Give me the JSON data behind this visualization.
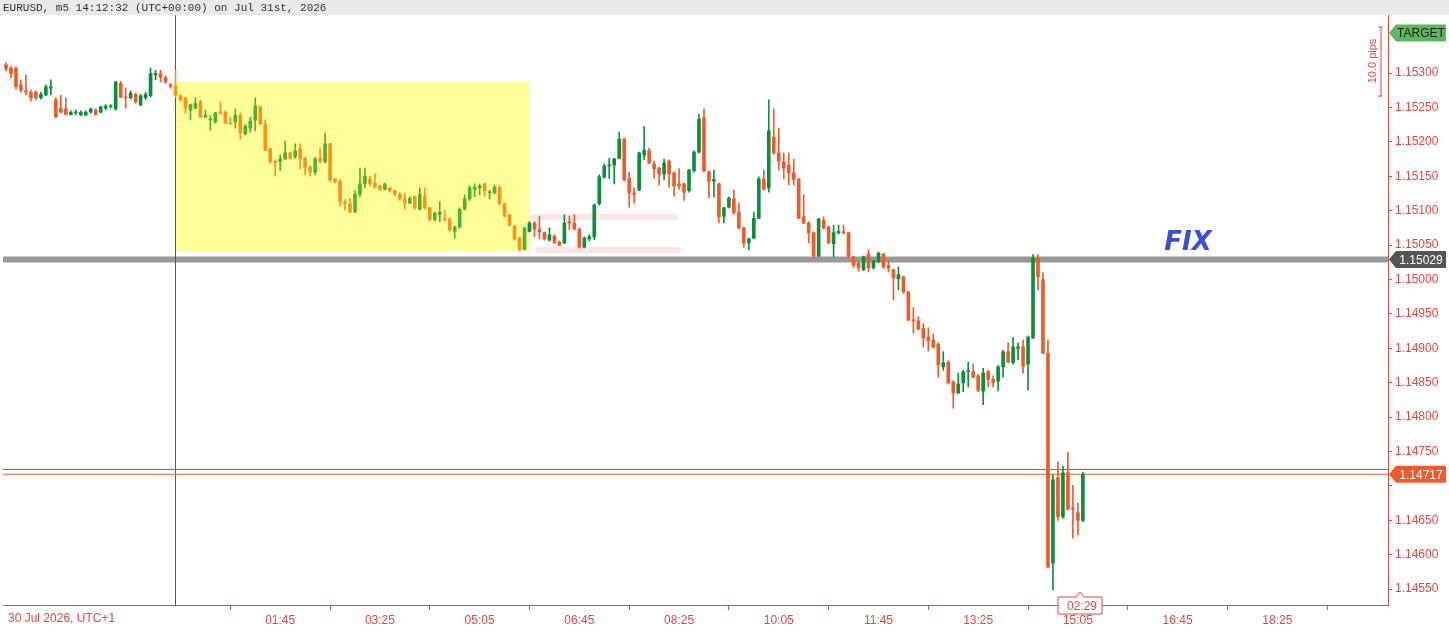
{
  "chart_data": {
    "type": "candlestick",
    "title": "EURUSD, m5 14:12:32 (UTC+00:00) on Jul 31st, 2026",
    "x": [
      "2026-07-30T21:10",
      "2026-07-30T21:15",
      "2026-07-30T21:20",
      "2026-07-30T21:25",
      "2026-07-30T21:30",
      "2026-07-30T21:35",
      "2026-07-30T21:40",
      "2026-07-30T21:45",
      "2026-07-30T21:50",
      "2026-07-30T21:55",
      "2026-07-30T22:00",
      "2026-07-30T22:05",
      "2026-07-30T22:10",
      "2026-07-30T22:15",
      "2026-07-30T22:20",
      "2026-07-30T22:25",
      "2026-07-30T22:30",
      "2026-07-30T22:35",
      "2026-07-30T22:40",
      "2026-07-30T22:45",
      "2026-07-30T22:50",
      "2026-07-30T22:55",
      "2026-07-30T23:00",
      "2026-07-30T23:05",
      "2026-07-30T23:10",
      "2026-07-30T23:15",
      "2026-07-30T23:20",
      "2026-07-30T23:25",
      "2026-07-30T23:30",
      "2026-07-30T23:35",
      "2026-07-30T23:40",
      "2026-07-30T23:45",
      "2026-07-30T23:50",
      "2026-07-30T23:55",
      "2026-07-31T00:00",
      "2026-07-31T00:05",
      "2026-07-31T00:10",
      "2026-07-31T00:15",
      "2026-07-31T00:20",
      "2026-07-31T00:25",
      "2026-07-31T00:30",
      "2026-07-31T00:35",
      "2026-07-31T00:40",
      "2026-07-31T00:45",
      "2026-07-31T00:50",
      "2026-07-31T00:55",
      "2026-07-31T01:00",
      "2026-07-31T01:05",
      "2026-07-31T01:10",
      "2026-07-31T01:15",
      "2026-07-31T01:20",
      "2026-07-31T01:25",
      "2026-07-31T01:30",
      "2026-07-31T01:35",
      "2026-07-31T01:40",
      "2026-07-31T01:45",
      "2026-07-31T01:50",
      "2026-07-31T01:55",
      "2026-07-31T02:00",
      "2026-07-31T02:05",
      "2026-07-31T02:10",
      "2026-07-31T02:15",
      "2026-07-31T02:20",
      "2026-07-31T02:25",
      "2026-07-31T02:30",
      "2026-07-31T02:35",
      "2026-07-31T02:40",
      "2026-07-31T02:45",
      "2026-07-31T02:50",
      "2026-07-31T02:55",
      "2026-07-31T03:00",
      "2026-07-31T03:05",
      "2026-07-31T03:10",
      "2026-07-31T03:15",
      "2026-07-31T03:20",
      "2026-07-31T03:25",
      "2026-07-31T03:30",
      "2026-07-31T03:35",
      "2026-07-31T03:40",
      "2026-07-31T03:45",
      "2026-07-31T03:50",
      "2026-07-31T03:55",
      "2026-07-31T04:00",
      "2026-07-31T04:05",
      "2026-07-31T04:10",
      "2026-07-31T04:15",
      "2026-07-31T04:20",
      "2026-07-31T04:25",
      "2026-07-31T04:30",
      "2026-07-31T04:35",
      "2026-07-31T04:40",
      "2026-07-31T04:45",
      "2026-07-31T04:50",
      "2026-07-31T04:55",
      "2026-07-31T05:00",
      "2026-07-31T05:05",
      "2026-07-31T05:10",
      "2026-07-31T05:15",
      "2026-07-31T05:20",
      "2026-07-31T05:25",
      "2026-07-31T05:30",
      "2026-07-31T05:35",
      "2026-07-31T05:40",
      "2026-07-31T05:45",
      "2026-07-31T05:50",
      "2026-07-31T05:55",
      "2026-07-31T06:00",
      "2026-07-31T06:05",
      "2026-07-31T06:10",
      "2026-07-31T06:15",
      "2026-07-31T06:20",
      "2026-07-31T06:25",
      "2026-07-31T06:30",
      "2026-07-31T06:35",
      "2026-07-31T06:40",
      "2026-07-31T06:45",
      "2026-07-31T06:50",
      "2026-07-31T06:55",
      "2026-07-31T07:00",
      "2026-07-31T07:05",
      "2026-07-31T07:10",
      "2026-07-31T07:15",
      "2026-07-31T07:20",
      "2026-07-31T07:25",
      "2026-07-31T07:30",
      "2026-07-31T07:35",
      "2026-07-31T07:40",
      "2026-07-31T07:45",
      "2026-07-31T07:50",
      "2026-07-31T07:55",
      "2026-07-31T08:00",
      "2026-07-31T08:05",
      "2026-07-31T08:10",
      "2026-07-31T08:15",
      "2026-07-31T08:20",
      "2026-07-31T08:25",
      "2026-07-31T08:30",
      "2026-07-31T08:35",
      "2026-07-31T08:40",
      "2026-07-31T08:45",
      "2026-07-31T08:50",
      "2026-07-31T08:55",
      "2026-07-31T09:00",
      "2026-07-31T09:05",
      "2026-07-31T09:10",
      "2026-07-31T09:15",
      "2026-07-31T09:20",
      "2026-07-31T09:25",
      "2026-07-31T09:30",
      "2026-07-31T09:35",
      "2026-07-31T09:40",
      "2026-07-31T09:45",
      "2026-07-31T09:50",
      "2026-07-31T09:55",
      "2026-07-31T10:00",
      "2026-07-31T10:05",
      "2026-07-31T10:10",
      "2026-07-31T10:15",
      "2026-07-31T10:20",
      "2026-07-31T10:25",
      "2026-07-31T10:30",
      "2026-07-31T10:35",
      "2026-07-31T10:40",
      "2026-07-31T10:45",
      "2026-07-31T10:50",
      "2026-07-31T10:55",
      "2026-07-31T11:00",
      "2026-07-31T11:05",
      "2026-07-31T11:10",
      "2026-07-31T11:15",
      "2026-07-31T11:20",
      "2026-07-31T11:25",
      "2026-07-31T11:30",
      "2026-07-31T11:35",
      "2026-07-31T11:40",
      "2026-07-31T11:45",
      "2026-07-31T11:50",
      "2026-07-31T11:55",
      "2026-07-31T12:00",
      "2026-07-31T12:05",
      "2026-07-31T12:10",
      "2026-07-31T12:15",
      "2026-07-31T12:20",
      "2026-07-31T12:25",
      "2026-07-31T12:30",
      "2026-07-31T12:35",
      "2026-07-31T12:40",
      "2026-07-31T12:45",
      "2026-07-31T12:50",
      "2026-07-31T12:55",
      "2026-07-31T13:00",
      "2026-07-31T13:05",
      "2026-07-31T13:10",
      "2026-07-31T13:15",
      "2026-07-31T13:20",
      "2026-07-31T13:25",
      "2026-07-31T13:30",
      "2026-07-31T13:35",
      "2026-07-31T13:40",
      "2026-07-31T13:45",
      "2026-07-31T13:50",
      "2026-07-31T13:55",
      "2026-07-31T14:00",
      "2026-07-31T14:05",
      "2026-07-31T14:10",
      "2026-07-31T14:15",
      "2026-07-31T14:20",
      "2026-07-31T14:25",
      "2026-07-31T14:30",
      "2026-07-31T14:35",
      "2026-07-31T14:40",
      "2026-07-31T14:45",
      "2026-07-31T14:50",
      "2026-07-31T14:55",
      "2026-07-31T15:00",
      "2026-07-31T15:05",
      "2026-07-31T15:10"
    ],
    "ohlc": [
      [
        1.15312,
        1.15315,
        1.15303,
        1.15306
      ],
      [
        1.15307,
        1.1531,
        1.15293,
        1.15299
      ],
      [
        1.15307,
        1.15309,
        1.15277,
        1.1528
      ],
      [
        1.15283,
        1.1529,
        1.15272,
        1.15275
      ],
      [
        1.15274,
        1.15297,
        1.15268,
        1.15272
      ],
      [
        1.15272,
        1.15275,
        1.15259,
        1.15264
      ],
      [
        1.15272,
        1.15274,
        1.15261,
        1.15264
      ],
      [
        1.15264,
        1.15272,
        1.15262,
        1.15269
      ],
      [
        1.15268,
        1.15283,
        1.15267,
        1.1528
      ],
      [
        1.15278,
        1.1529,
        1.15268,
        1.1528
      ],
      [
        1.15261,
        1.15264,
        1.15235,
        1.15236
      ],
      [
        1.15249,
        1.15268,
        1.15242,
        1.15243
      ],
      [
        1.15248,
        1.15264,
        1.15239,
        1.1524
      ],
      [
        1.1524,
        1.15245,
        1.15239,
        1.15243
      ],
      [
        1.15242,
        1.15246,
        1.15239,
        1.15243
      ],
      [
        1.15239,
        1.15245,
        1.15238,
        1.15243
      ],
      [
        1.15239,
        1.15245,
        1.15238,
        1.15243
      ],
      [
        1.15243,
        1.15249,
        1.15242,
        1.15248
      ],
      [
        1.15246,
        1.15248,
        1.15239,
        1.1524
      ],
      [
        1.15243,
        1.15252,
        1.15242,
        1.15251
      ],
      [
        1.15249,
        1.15254,
        1.15246,
        1.15252
      ],
      [
        1.15251,
        1.15254,
        1.15249,
        1.15252
      ],
      [
        1.15248,
        1.15288,
        1.15246,
        1.15287
      ],
      [
        1.15285,
        1.15288,
        1.15264,
        1.15265
      ],
      [
        1.15265,
        1.15278,
        1.15249,
        1.15264
      ],
      [
        1.15264,
        1.15274,
        1.15262,
        1.15271
      ],
      [
        1.15269,
        1.15271,
        1.15256,
        1.15258
      ],
      [
        1.15254,
        1.15269,
        1.15252,
        1.15267
      ],
      [
        1.15264,
        1.15272,
        1.15261,
        1.15269
      ],
      [
        1.15267,
        1.15307,
        1.15265,
        1.15299
      ],
      [
        1.15297,
        1.15304,
        1.1529,
        1.15299
      ],
      [
        1.15299,
        1.15304,
        1.15287,
        1.15294
      ],
      [
        1.15293,
        1.15296,
        1.15285,
        1.15287
      ],
      [
        1.15283,
        1.15285,
        1.15278,
        1.15281
      ],
      [
        1.15281,
        1.15304,
        1.15264,
        1.15267
      ],
      [
        1.15267,
        1.15269,
        1.15259,
        1.15261
      ],
      [
        1.15264,
        1.15265,
        1.15242,
        1.15249
      ],
      [
        1.15246,
        1.15255,
        1.15232,
        1.15254
      ],
      [
        1.15249,
        1.15264,
        1.15248,
        1.15256
      ],
      [
        1.15258,
        1.15261,
        1.15235,
        1.15236
      ],
      [
        1.15236,
        1.15246,
        1.15235,
        1.15239
      ],
      [
        1.15232,
        1.15238,
        1.15217,
        1.15233
      ],
      [
        1.15229,
        1.15243,
        1.15227,
        1.15242
      ],
      [
        1.15243,
        1.15258,
        1.1524,
        1.15242
      ],
      [
        1.15243,
        1.15245,
        1.15226,
        1.15227
      ],
      [
        1.15227,
        1.15236,
        1.15225,
        1.15226
      ],
      [
        1.15229,
        1.15248,
        1.1522,
        1.15239
      ],
      [
        1.15238,
        1.15242,
        1.15204,
        1.15213
      ],
      [
        1.15211,
        1.15225,
        1.1521,
        1.15223
      ],
      [
        1.1522,
        1.15236,
        1.15214,
        1.1523
      ],
      [
        1.15232,
        1.15264,
        1.15216,
        1.15252
      ],
      [
        1.15251,
        1.15252,
        1.15225,
        1.15226
      ],
      [
        1.15226,
        1.15232,
        1.15187,
        1.15188
      ],
      [
        1.1519,
        1.15191,
        1.15169,
        1.15171
      ],
      [
        1.15172,
        1.15174,
        1.1515,
        1.1517
      ],
      [
        1.15171,
        1.15181,
        1.15158,
        1.15175
      ],
      [
        1.15175,
        1.15201,
        1.15174,
        1.15184
      ],
      [
        1.15184,
        1.15185,
        1.15175,
        1.15176
      ],
      [
        1.15178,
        1.15197,
        1.15176,
        1.15187
      ],
      [
        1.1519,
        1.15197,
        1.15161,
        1.15176
      ],
      [
        1.15176,
        1.15178,
        1.15152,
        1.15163
      ],
      [
        1.15163,
        1.15165,
        1.1515,
        1.15156
      ],
      [
        1.15156,
        1.15178,
        1.15152,
        1.15175
      ],
      [
        1.15176,
        1.15191,
        1.15169,
        1.15171
      ],
      [
        1.15171,
        1.15213,
        1.15169,
        1.15197
      ],
      [
        1.15197,
        1.15198,
        1.15142,
        1.15145
      ],
      [
        1.15146,
        1.15147,
        1.1514,
        1.15142
      ],
      [
        1.15143,
        1.15145,
        1.15107,
        1.15113
      ],
      [
        1.15113,
        1.15116,
        1.15101,
        1.1511
      ],
      [
        1.1511,
        1.15118,
        1.15097,
        1.15098
      ],
      [
        1.15098,
        1.15129,
        1.15097,
        1.15124
      ],
      [
        1.15124,
        1.15162,
        1.1512,
        1.15139
      ],
      [
        1.15139,
        1.15162,
        1.15133,
        1.1515
      ],
      [
        1.15146,
        1.1515,
        1.15136,
        1.15139
      ],
      [
        1.1514,
        1.15153,
        1.15133,
        1.15134
      ],
      [
        1.15136,
        1.15137,
        1.15129,
        1.15131
      ],
      [
        1.15131,
        1.1514,
        1.1513,
        1.15139
      ],
      [
        1.15133,
        1.15134,
        1.15127,
        1.15129
      ],
      [
        1.15129,
        1.1513,
        1.15121,
        1.15124
      ],
      [
        1.15124,
        1.15126,
        1.15115,
        1.15117
      ],
      [
        1.15117,
        1.15126,
        1.15102,
        1.15111
      ],
      [
        1.15111,
        1.1512,
        1.1511,
        1.15118
      ],
      [
        1.1512,
        1.15121,
        1.15102,
        1.15104
      ],
      [
        1.15102,
        1.15133,
        1.15101,
        1.15124
      ],
      [
        1.15121,
        1.15133,
        1.15102,
        1.15104
      ],
      [
        1.15104,
        1.15105,
        1.15085,
        1.15087
      ],
      [
        1.15087,
        1.15098,
        1.15085,
        1.15097
      ],
      [
        1.15094,
        1.15113,
        1.15084,
        1.15098
      ],
      [
        1.15088,
        1.15101,
        1.15085,
        1.15087
      ],
      [
        1.15088,
        1.15089,
        1.1507,
        1.15072
      ],
      [
        1.1507,
        1.15078,
        1.1506,
        1.15076
      ],
      [
        1.15076,
        1.15104,
        1.15075,
        1.15102
      ],
      [
        1.15102,
        1.15123,
        1.15101,
        1.15117
      ],
      [
        1.15117,
        1.15136,
        1.15115,
        1.15133
      ],
      [
        1.15131,
        1.15139,
        1.1512,
        1.15134
      ],
      [
        1.15133,
        1.15139,
        1.15123,
        1.15136
      ],
      [
        1.15139,
        1.1514,
        1.15121,
        1.15129
      ],
      [
        1.15126,
        1.1513,
        1.15117,
        1.15127
      ],
      [
        1.15126,
        1.15137,
        1.15124,
        1.15134
      ],
      [
        1.15134,
        1.15136,
        1.15108,
        1.1511
      ],
      [
        1.1511,
        1.15111,
        1.15091,
        1.15092
      ],
      [
        1.15094,
        1.15095,
        1.15078,
        1.15079
      ],
      [
        1.15078,
        1.15079,
        1.15057,
        1.15059
      ],
      [
        1.1506,
        1.15062,
        1.15041,
        1.15043
      ],
      [
        1.15044,
        1.15076,
        1.15043,
        1.15075
      ],
      [
        1.1507,
        1.15084,
        1.15069,
        1.15082
      ],
      [
        1.15082,
        1.15084,
        1.15062,
        1.15073
      ],
      [
        1.15073,
        1.15092,
        1.15059,
        1.15069
      ],
      [
        1.15068,
        1.15069,
        1.15057,
        1.15059
      ],
      [
        1.15057,
        1.15075,
        1.15056,
        1.15065
      ],
      [
        1.15063,
        1.15065,
        1.15052,
        1.15054
      ],
      [
        1.15054,
        1.15056,
        1.15049,
        1.1505
      ],
      [
        1.15053,
        1.15094,
        1.15052,
        1.15082
      ],
      [
        1.15084,
        1.15092,
        1.15072,
        1.15082
      ],
      [
        1.15082,
        1.15094,
        1.15072,
        1.15073
      ],
      [
        1.15073,
        1.15075,
        1.15046,
        1.15047
      ],
      [
        1.15047,
        1.15062,
        1.15046,
        1.1506
      ],
      [
        1.15059,
        1.15065,
        1.15056,
        1.15062
      ],
      [
        1.15062,
        1.1511,
        1.15058,
        1.15108
      ],
      [
        1.1511,
        1.15152,
        1.15108,
        1.15149
      ],
      [
        1.15149,
        1.15168,
        1.15147,
        1.15165
      ],
      [
        1.15165,
        1.15176,
        1.15147,
        1.15166
      ],
      [
        1.15166,
        1.15176,
        1.15139,
        1.15175
      ],
      [
        1.15176,
        1.15214,
        1.15175,
        1.15204
      ],
      [
        1.15204,
        1.15205,
        1.15143,
        1.15145
      ],
      [
        1.15147,
        1.15156,
        1.15105,
        1.15126
      ],
      [
        1.15126,
        1.15133,
        1.15111,
        1.15124
      ],
      [
        1.1513,
        1.15185,
        1.15129,
        1.15184
      ],
      [
        1.15181,
        1.15222,
        1.15174,
        1.15188
      ],
      [
        1.15187,
        1.15191,
        1.15168,
        1.15169
      ],
      [
        1.15168,
        1.15172,
        1.15147,
        1.15161
      ],
      [
        1.15162,
        1.15163,
        1.15137,
        1.15153
      ],
      [
        1.15153,
        1.15175,
        1.15145,
        1.15169
      ],
      [
        1.15172,
        1.15174,
        1.15134,
        1.15153
      ],
      [
        1.15155,
        1.15156,
        1.15121,
        1.15136
      ],
      [
        1.15139,
        1.15161,
        1.15131,
        1.15136
      ],
      [
        1.15139,
        1.1514,
        1.15115,
        1.15127
      ],
      [
        1.15129,
        1.1516,
        1.15127,
        1.15159
      ],
      [
        1.15158,
        1.15187,
        1.15156,
        1.15185
      ],
      [
        1.15185,
        1.1524,
        1.15184,
        1.15233
      ],
      [
        1.15235,
        1.15248,
        1.15156,
        1.15158
      ],
      [
        1.15156,
        1.15158,
        1.15119,
        1.15142
      ],
      [
        1.15143,
        1.15159,
        1.1512,
        1.15145
      ],
      [
        1.15139,
        1.1514,
        1.15082,
        1.15091
      ],
      [
        1.15092,
        1.15105,
        1.15082,
        1.15104
      ],
      [
        1.15105,
        1.1512,
        1.15104,
        1.15118
      ],
      [
        1.15117,
        1.1513,
        1.15095,
        1.15097
      ],
      [
        1.15098,
        1.15111,
        1.15073,
        1.15075
      ],
      [
        1.15075,
        1.15076,
        1.15047,
        1.15053
      ],
      [
        1.15053,
        1.1506,
        1.15043,
        1.15059
      ],
      [
        1.1506,
        1.15098,
        1.15059,
        1.15089
      ],
      [
        1.15089,
        1.15149,
        1.15088,
        1.15146
      ],
      [
        1.15146,
        1.15159,
        1.1513,
        1.15131
      ],
      [
        1.15133,
        1.15261,
        1.15127,
        1.15216
      ],
      [
        1.15207,
        1.15248,
        1.15182,
        1.15184
      ],
      [
        1.15184,
        1.1522,
        1.15159,
        1.15172
      ],
      [
        1.15171,
        1.15184,
        1.15146,
        1.15162
      ],
      [
        1.15166,
        1.15184,
        1.15137,
        1.15155
      ],
      [
        1.15155,
        1.15175,
        1.15137,
        1.15145
      ],
      [
        1.15146,
        1.15147,
        1.15088,
        1.15089
      ],
      [
        1.15091,
        1.15123,
        1.15081,
        1.15082
      ],
      [
        1.15082,
        1.15084,
        1.15053,
        1.15068
      ],
      [
        1.15068,
        1.15069,
        1.15031,
        1.15034
      ],
      [
        1.15034,
        1.15089,
        1.15033,
        1.15088
      ],
      [
        1.15086,
        1.15091,
        1.15073,
        1.15075
      ],
      [
        1.15076,
        1.15078,
        1.15052,
        1.15053
      ],
      [
        1.15052,
        1.15079,
        1.15033,
        1.15068
      ],
      [
        1.15068,
        1.15079,
        1.15066,
        1.15069
      ],
      [
        1.15069,
        1.15079,
        1.15066,
        1.15068
      ],
      [
        1.15068,
        1.15069,
        1.15031,
        1.15034
      ],
      [
        1.15033,
        1.15034,
        1.15017,
        1.15021
      ],
      [
        1.15024,
        1.15026,
        1.15012,
        1.15017
      ],
      [
        1.15014,
        1.15034,
        1.15013,
        1.15033
      ],
      [
        1.15037,
        1.15043,
        1.15011,
        1.15017
      ],
      [
        1.15017,
        1.15028,
        1.15015,
        1.15027
      ],
      [
        1.15026,
        1.1504,
        1.15024,
        1.15038
      ],
      [
        1.15037,
        1.15038,
        1.15016,
        1.15018
      ],
      [
        1.1502,
        1.15027,
        1.15011,
        1.15017
      ],
      [
        1.15014,
        1.15015,
        1.1497,
        1.15002
      ],
      [
        1.15001,
        1.15018,
        1.14985,
        1.15007
      ],
      [
        1.15004,
        1.15005,
        1.1498,
        1.14982
      ],
      [
        1.14982,
        1.14983,
        1.1494,
        1.14941
      ],
      [
        1.14941,
        1.14959,
        1.14922,
        1.1494
      ],
      [
        1.1494,
        1.14946,
        1.14927,
        1.14928
      ],
      [
        1.14929,
        1.14936,
        1.14902,
        1.14915
      ],
      [
        1.14916,
        1.1493,
        1.14896,
        1.14911
      ],
      [
        1.14912,
        1.14921,
        1.149,
        1.14902
      ],
      [
        1.14906,
        1.14908,
        1.14858,
        1.14876
      ],
      [
        1.14873,
        1.14895,
        1.14868,
        1.14879
      ],
      [
        1.1488,
        1.14882,
        1.14848,
        1.1485
      ],
      [
        1.14851,
        1.14853,
        1.14813,
        1.14835
      ],
      [
        1.14835,
        1.14864,
        1.14834,
        1.14848
      ],
      [
        1.1485,
        1.14868,
        1.14837,
        1.14866
      ],
      [
        1.14866,
        1.1488,
        1.14844,
        1.14867
      ],
      [
        1.14866,
        1.14877,
        1.14857,
        1.14858
      ],
      [
        1.1486,
        1.14862,
        1.14837,
        1.14839
      ],
      [
        1.14838,
        1.14871,
        1.14818,
        1.14864
      ],
      [
        1.14866,
        1.14868,
        1.14844,
        1.14855
      ],
      [
        1.14855,
        1.1486,
        1.14844,
        1.1485
      ],
      [
        1.14852,
        1.14875,
        1.14838,
        1.14873
      ],
      [
        1.14873,
        1.14897,
        1.14858,
        1.14895
      ],
      [
        1.14895,
        1.14908,
        1.14879,
        1.1488
      ],
      [
        1.14879,
        1.14916,
        1.14877,
        1.14902
      ],
      [
        1.149,
        1.14908,
        1.14883,
        1.14902
      ],
      [
        1.14902,
        1.14912,
        1.14864,
        1.14874
      ],
      [
        1.14877,
        1.14918,
        1.14839,
        1.14916
      ],
      [
        1.14915,
        1.15036,
        1.14914,
        1.15031
      ],
      [
        1.15031,
        1.15036,
        1.14985,
        1.15004
      ],
      [
        1.15,
        1.1501,
        1.14892,
        1.14893
      ],
      [
        1.14893,
        1.14912,
        1.14581,
        1.14582
      ],
      [
        1.14588,
        1.14716,
        1.14549,
        1.14709
      ],
      [
        1.14712,
        1.14735,
        1.1465,
        1.14655
      ],
      [
        1.14655,
        1.14729,
        1.14653,
        1.14719
      ],
      [
        1.14719,
        1.14749,
        1.14665,
        1.14666
      ],
      [
        1.14668,
        1.14701,
        1.14624,
        1.14666
      ],
      [
        1.14661,
        1.14675,
        1.14629,
        1.1465
      ],
      [
        1.1465,
        1.1472,
        1.14648,
        1.14717
      ]
    ],
    "colors": [
      "#f05a28",
      "#f05a28",
      "#f05a28",
      "#f05a28",
      "#f05a28",
      "#f05a28",
      "#f05a28",
      "#0b8f3c",
      "#0b8f3c",
      "#0b8f3c",
      "#f05a28",
      "#f05a28",
      "#f05a28",
      "#0b8f3c",
      "#0b8f3c",
      "#0b8f3c",
      "#0b8f3c",
      "#0b8f3c",
      "#f05a28",
      "#0b8f3c",
      "#0b8f3c",
      "#0b8f3c",
      "#0b8f3c",
      "#f05a28",
      "#f05a28",
      "#0b8f3c",
      "#f05a28",
      "#0b8f3c",
      "#0b8f3c",
      "#0b8f3c",
      "#0b8f3c",
      "#f05a28",
      "#f05a28",
      "#f05a28",
      "#f7941d",
      "#f7941d",
      "#f7941d",
      "#52b030",
      "#52b030",
      "#f7941d",
      "#52b030",
      "#52b030",
      "#52b030",
      "#f7941d",
      "#f7941d",
      "#f7941d",
      "#52b030",
      "#f7941d",
      "#52b030",
      "#52b030",
      "#52b030",
      "#f7941d",
      "#f7941d",
      "#f7941d",
      "#f7941d",
      "#52b030",
      "#52b030",
      "#f7941d",
      "#52b030",
      "#f7941d",
      "#f7941d",
      "#f7941d",
      "#52b030",
      "#f7941d",
      "#52b030",
      "#f7941d",
      "#f7941d",
      "#f7941d",
      "#f7941d",
      "#f7941d",
      "#52b030",
      "#52b030",
      "#52b030",
      "#f7941d",
      "#f7941d",
      "#f7941d",
      "#52b030",
      "#f7941d",
      "#f7941d",
      "#f7941d",
      "#f7941d",
      "#52b030",
      "#f7941d",
      "#52b030",
      "#f7941d",
      "#f7941d",
      "#52b030",
      "#52b030",
      "#f7941d",
      "#f7941d",
      "#52b030",
      "#52b030",
      "#52b030",
      "#52b030",
      "#52b030",
      "#52b030",
      "#f7941d",
      "#52b030",
      "#52b030",
      "#f7941d",
      "#f7941d",
      "#f7941d",
      "#f7941d",
      "#f7941d",
      "#52b030",
      "#0b8f3c",
      "#f05a28",
      "#f05a28",
      "#f05a28",
      "#0b8f3c",
      "#f05a28",
      "#f05a28",
      "#0b8f3c",
      "#f05a28",
      "#f05a28",
      "#f05a28",
      "#0b8f3c",
      "#0b8f3c",
      "#0b8f3c",
      "#0b8f3c",
      "#0b8f3c",
      "#0b8f3c",
      "#0b8f3c",
      "#0b8f3c",
      "#f05a28",
      "#f05a28",
      "#f05a28",
      "#0b8f3c",
      "#0b8f3c",
      "#f05a28",
      "#f05a28",
      "#f05a28",
      "#0b8f3c",
      "#f05a28",
      "#f05a28",
      "#f05a28",
      "#f05a28",
      "#0b8f3c",
      "#0b8f3c",
      "#0b8f3c",
      "#f05a28",
      "#f05a28",
      "#0b8f3c",
      "#f05a28",
      "#0b8f3c",
      "#0b8f3c",
      "#f05a28",
      "#f05a28",
      "#f05a28",
      "#0b8f3c",
      "#0b8f3c",
      "#0b8f3c",
      "#f05a28",
      "#0b8f3c",
      "#f05a28",
      "#f05a28",
      "#f05a28",
      "#f05a28",
      "#f05a28",
      "#f05a28",
      "#f05a28",
      "#f05a28",
      "#f05a28",
      "#0b8f3c",
      "#f05a28",
      "#f05a28",
      "#0b8f3c",
      "#0b8f3c",
      "#f05a28",
      "#f05a28",
      "#f05a28",
      "#f05a28",
      "#0b8f3c",
      "#f05a28",
      "#0b8f3c",
      "#0b8f3c",
      "#f05a28",
      "#f05a28",
      "#f05a28",
      "#0b8f3c",
      "#f05a28",
      "#f05a28",
      "#f05a28",
      "#f05a28",
      "#f05a28",
      "#f05a28",
      "#f05a28",
      "#f05a28",
      "#0b8f3c",
      "#f05a28",
      "#f05a28",
      "#0b8f3c",
      "#0b8f3c",
      "#0b8f3c",
      "#f05a28",
      "#f05a28",
      "#0b8f3c",
      "#f05a28",
      "#f05a28",
      "#0b8f3c",
      "#0b8f3c",
      "#f05a28",
      "#0b8f3c",
      "#0b8f3c",
      "#f05a28",
      "#0b8f3c",
      "#0b8f3c",
      "#f05a28",
      "#f05a28",
      "#f05a28",
      "#0b8f3c",
      "#f05a28",
      "#0b8f3c",
      "#f05a28",
      "#f05a28",
      "#f05a28",
      "#0b8f3c"
    ],
    "xlim": [
      "2026-07-30T21:07",
      "2026-07-31T20:16"
    ],
    "xticks": [
      {
        "value": "2026-07-31T01:45",
        "label": "01:45"
      },
      {
        "value": "2026-07-31T03:25",
        "label": "03:25"
      },
      {
        "value": "2026-07-31T05:05",
        "label": "05:05"
      },
      {
        "value": "2026-07-31T06:45",
        "label": "06:45"
      },
      {
        "value": "2026-07-31T08:25",
        "label": "08:25"
      },
      {
        "value": "2026-07-31T10:05",
        "label": "10:05"
      },
      {
        "value": "2026-07-31T11:45",
        "label": "11:45"
      },
      {
        "value": "2026-07-31T13:25",
        "label": "13:25"
      },
      {
        "value": "2026-07-31T15:05",
        "label": "15:05"
      },
      {
        "value": "2026-07-31T16:45",
        "label": "16:45"
      },
      {
        "value": "2026-07-31T18:25",
        "label": "18:25"
      }
    ],
    "ylim": [
      1.14527,
      1.15384
    ],
    "yticks": [
      {
        "value": 1.1455,
        "label": "1.14550"
      },
      {
        "value": 1.146,
        "label": "1.14600"
      },
      {
        "value": 1.1465,
        "label": "1.14650"
      },
      {
        "value": 1.147,
        "label": null
      },
      {
        "value": 1.1475,
        "label": "1.14750"
      },
      {
        "value": 1.148,
        "label": "1.14800"
      },
      {
        "value": 1.1485,
        "label": "1.14850"
      },
      {
        "value": 1.149,
        "label": "1.14900"
      },
      {
        "value": 1.1495,
        "label": "1.14950"
      },
      {
        "value": 1.15,
        "label": "1.15000"
      },
      {
        "value": 1.1505,
        "label": "1.15050"
      },
      {
        "value": 1.151,
        "label": "1.15100"
      },
      {
        "value": 1.1515,
        "label": "1.15150"
      },
      {
        "value": 1.152,
        "label": "1.15200"
      },
      {
        "value": 1.1525,
        "label": "1.15250"
      },
      {
        "value": 1.153,
        "label": "1.15300"
      }
    ],
    "ref_lines": [
      {
        "axis": "x",
        "value": "2026-07-31T00:00",
        "color": "#555555"
      },
      {
        "axis": "y",
        "value": 1.15029,
        "label": "1.15029",
        "color": "#555555"
      },
      {
        "axis": "y",
        "value": 1.14724,
        "color": "#2e8b57"
      },
      {
        "axis": "y",
        "value": 1.14717,
        "label": "1.14717",
        "color": "#f05a28"
      }
    ],
    "annotations": [
      "30 Jul 2026, UTC+1",
      "FIX",
      "TARGET",
      "10.0 pips",
      "02:29"
    ]
  }
}
